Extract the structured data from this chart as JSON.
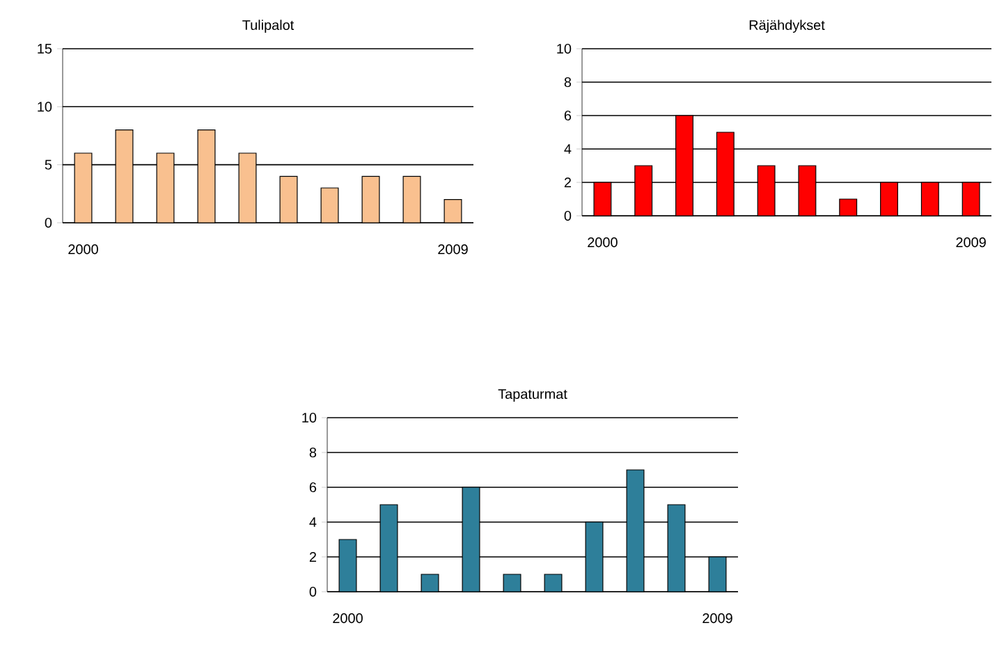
{
  "chart_data": [
    {
      "type": "bar",
      "title": "Tulipalot",
      "categories": [
        "2000",
        null,
        null,
        null,
        null,
        null,
        null,
        null,
        null,
        "2009"
      ],
      "values": [
        6,
        8,
        6,
        8,
        6,
        4,
        3,
        4,
        4,
        2
      ],
      "color": "#f9c08f",
      "ylim": [
        0,
        15
      ],
      "yticks": [
        0,
        5,
        10,
        15
      ],
      "grid": "y"
    },
    {
      "type": "bar",
      "title": "Räjähdykset",
      "categories": [
        "2000",
        null,
        null,
        null,
        null,
        null,
        null,
        null,
        null,
        "2009"
      ],
      "values": [
        2,
        3,
        6,
        5,
        3,
        3,
        1,
        2,
        2,
        2
      ],
      "color": "#ff0000",
      "ylim": [
        0,
        10
      ],
      "yticks": [
        0,
        2,
        4,
        6,
        8,
        10
      ],
      "grid": "y"
    },
    {
      "type": "bar",
      "title": "Tapaturmat",
      "categories": [
        "2000",
        null,
        null,
        null,
        null,
        null,
        null,
        null,
        null,
        "2009"
      ],
      "values": [
        3,
        5,
        1,
        6,
        1,
        1,
        4,
        7,
        5,
        2
      ],
      "color": "#2e7f9a",
      "ylim": [
        0,
        10
      ],
      "yticks": [
        0,
        2,
        4,
        6,
        8,
        10
      ],
      "grid": "y"
    }
  ]
}
